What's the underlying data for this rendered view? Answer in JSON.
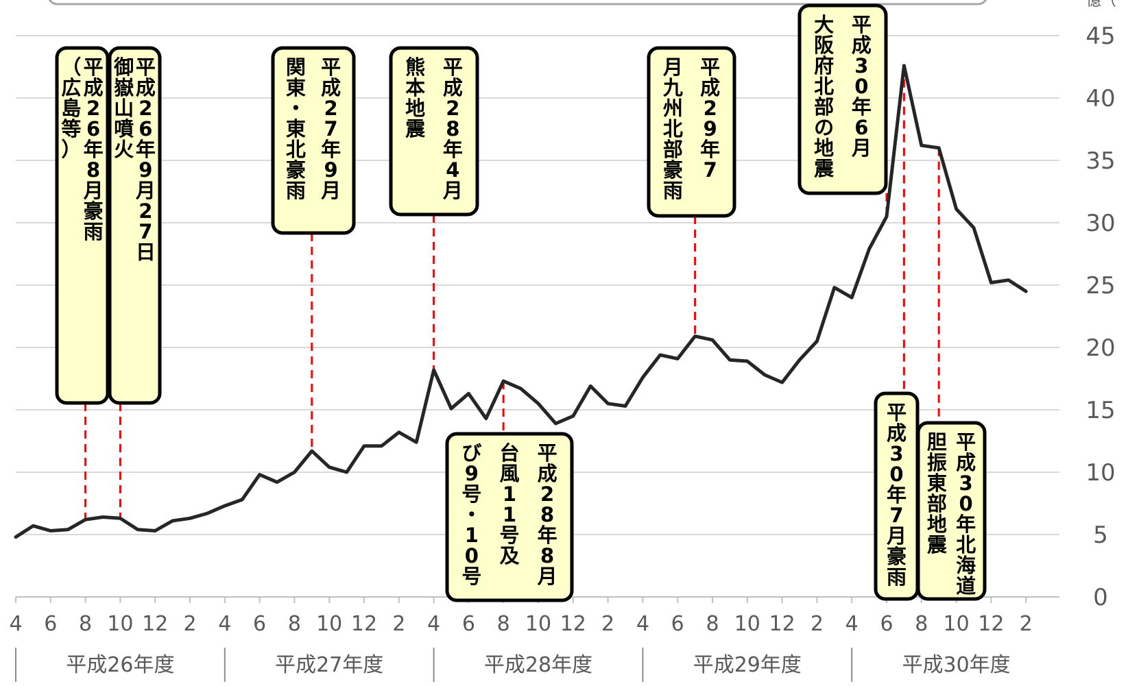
{
  "chart_data": {
    "type": "line",
    "y_unit_label": "億（",
    "ylim": [
      0,
      45
    ],
    "y_ticks": [
      0,
      5,
      10,
      15,
      20,
      25,
      30,
      35,
      40,
      45
    ],
    "x_tick_labels": [
      "4",
      "6",
      "8",
      "10",
      "12",
      "2",
      "4",
      "6",
      "8",
      "10",
      "12",
      "2",
      "4",
      "6",
      "8",
      "10",
      "12",
      "2",
      "4",
      "6",
      "8",
      "10",
      "12",
      "2",
      "4",
      "6",
      "8",
      "10",
      "12",
      "2"
    ],
    "fiscal_years": [
      "平成26年度",
      "平成27年度",
      "平成28年度",
      "平成29年度",
      "平成30年度"
    ],
    "series": [
      {
        "values": [
          4.8,
          5.7,
          5.3,
          5.4,
          6.2,
          6.4,
          6.3,
          5.4,
          5.3,
          6.1,
          6.3,
          6.7,
          7.3,
          7.8,
          9.8,
          9.2,
          10.0,
          11.7,
          10.4,
          10.0,
          12.1,
          12.1,
          13.2,
          12.4,
          18.2,
          15.1,
          16.3,
          14.3,
          17.3,
          16.7,
          15.5,
          13.9,
          14.5,
          16.9,
          15.5,
          15.3,
          17.6,
          19.4,
          19.1,
          20.9,
          20.6,
          19.0,
          18.9,
          17.8,
          17.2,
          19.0,
          20.5,
          24.8,
          24.0,
          27.9,
          30.5,
          42.6,
          36.2,
          36.0,
          31.1,
          29.6,
          25.2,
          25.4,
          24.5
        ]
      }
    ],
    "annotations": [
      {
        "label": "平成26年8月 豪雨（広島等）",
        "index": 4
      },
      {
        "label": "平成26年9月27日 御嶽山噴火",
        "index": 6
      },
      {
        "label": "平成27年9月 関東・東北豪雨",
        "index": 17
      },
      {
        "label": "平成28年4月 熊本地震",
        "index": 24
      },
      {
        "label": "平成28年8月 台風11号及び 9号・10号",
        "index": 28
      },
      {
        "label": "平成29年7月 九州北部豪雨",
        "index": 39
      },
      {
        "label": "平成30年6月 大阪府北部の地震",
        "index": 50
      },
      {
        "label": "平成30年7月豪雨",
        "index": 51
      },
      {
        "label": "平成30年北海道 胆振東部地震",
        "index": 53
      }
    ]
  }
}
